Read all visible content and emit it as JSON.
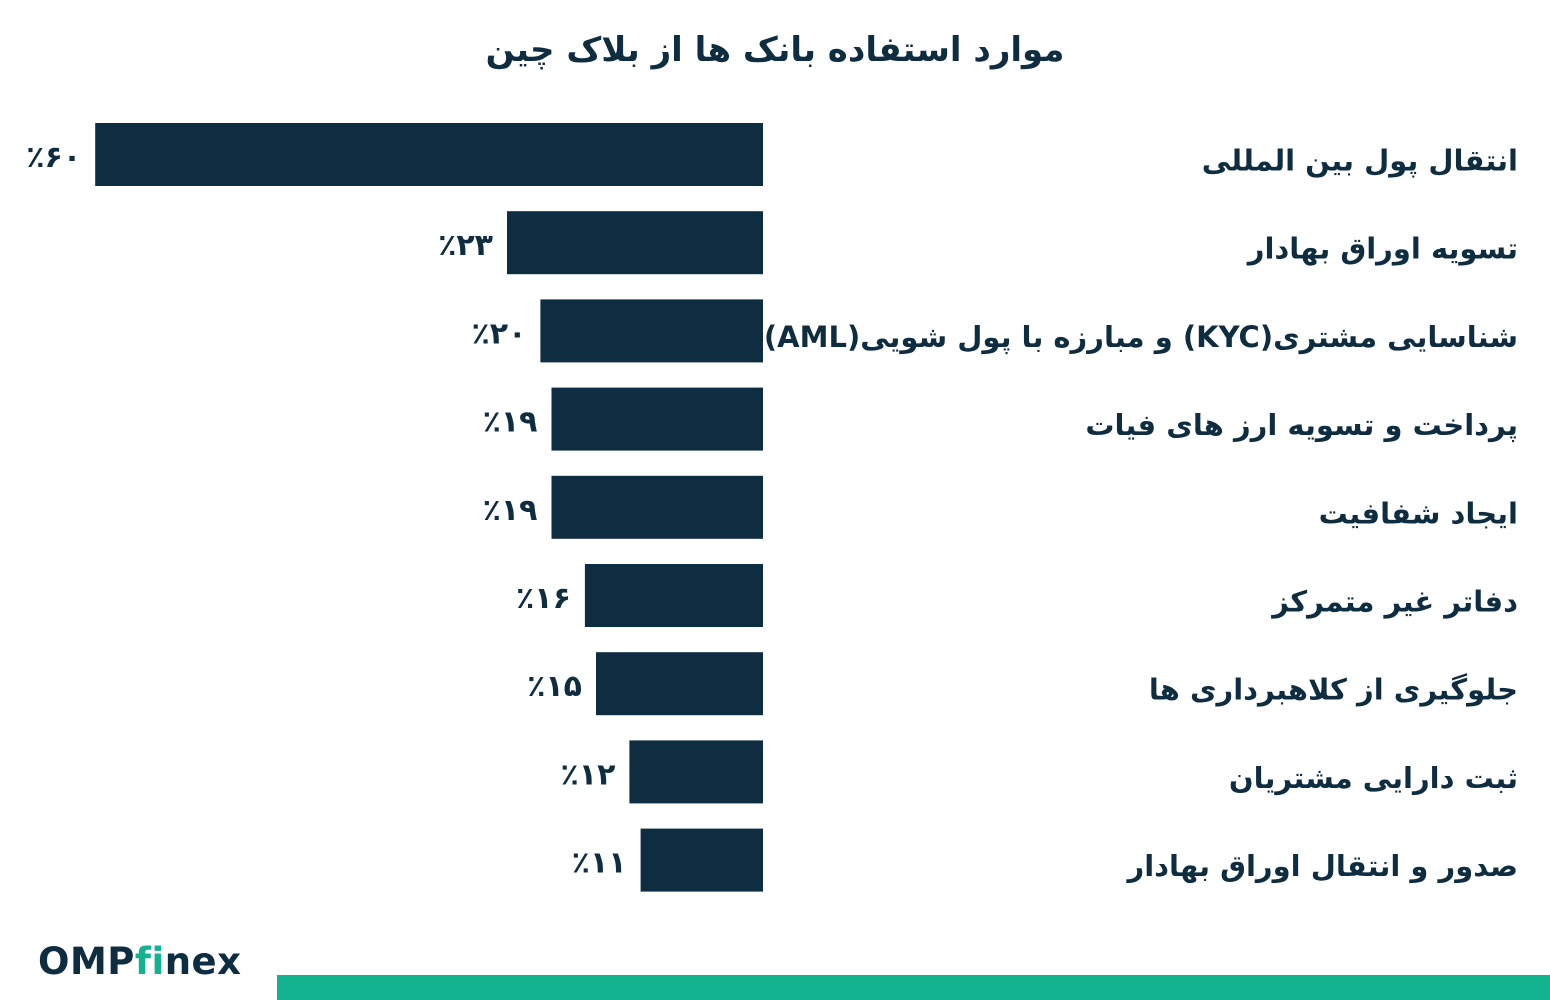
{
  "chart_data": {
    "type": "bar",
    "orientation": "horizontal",
    "title": "موارد استفاده بانک ها از بلاک چین",
    "categories": [
      "انتقال  پول بین المللی",
      "تسویه اوراق بهادار",
      "شناسایی مشتری(KYC) و مبارزه با پول شویی(AML)",
      "پرداخت و تسویه ارز های فیات",
      "ایجاد شفافیت",
      "دفاتر غیر متمرکز",
      "جلوگیری از کلاهبرداری  ها",
      "ثبت دارایی مشتریان",
      "صدور و انتقال اوراق بهادار"
    ],
    "values": [
      60,
      23,
      20,
      19,
      19,
      16,
      15,
      12,
      11
    ],
    "value_labels": [
      "٪۶۰",
      "٪۲۳",
      "٪۲۰",
      "٪۱۹",
      "٪۱۹",
      "٪۱۶",
      "٪۱۵",
      "٪۱۲",
      "٪۱۱"
    ],
    "xlabel": "",
    "ylabel": "",
    "grid": false,
    "legend": "none",
    "bar_color": "#0f2d40"
  },
  "branding": {
    "logo_main": "OMP",
    "logo_accent_1": "f",
    "logo_accent_2": "i",
    "logo_tail": "nex",
    "text_color": "#0f2d40",
    "accent_color": "#14b38f"
  },
  "footer": {
    "bar_color": "#14b38f"
  }
}
